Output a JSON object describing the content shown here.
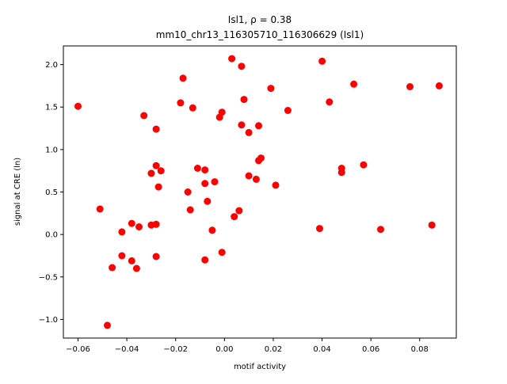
{
  "chart_data": {
    "type": "scatter",
    "title_line1": "Isl1, ρ = 0.38",
    "title_line2": "mm10_chr13_116305710_116306629 (Isl1)",
    "xlabel": "motif activity",
    "ylabel": "signal at CRE (ln)",
    "xlim": [
      -0.066,
      0.095
    ],
    "ylim": [
      -1.22,
      2.22
    ],
    "xticks": [
      -0.06,
      -0.04,
      -0.02,
      0.0,
      0.02,
      0.04,
      0.06,
      0.08
    ],
    "xtick_labels": [
      "−0.06",
      "−0.04",
      "−0.02",
      "0.00",
      "0.02",
      "0.04",
      "0.06",
      "0.08"
    ],
    "yticks": [
      -1.0,
      -0.5,
      0.0,
      0.5,
      1.0,
      1.5,
      2.0
    ],
    "ytick_labels": [
      "−1.0",
      "−0.5",
      "0.0",
      "0.5",
      "1.0",
      "1.5",
      "2.0"
    ],
    "marker_color": "#ff0000",
    "grid": false,
    "points": [
      {
        "x": -0.06,
        "y": 1.51
      },
      {
        "x": -0.051,
        "y": 0.3
      },
      {
        "x": -0.048,
        "y": -1.07
      },
      {
        "x": -0.046,
        "y": -0.39
      },
      {
        "x": -0.042,
        "y": 0.03
      },
      {
        "x": -0.042,
        "y": -0.25
      },
      {
        "x": -0.038,
        "y": 0.13
      },
      {
        "x": -0.038,
        "y": -0.31
      },
      {
        "x": -0.036,
        "y": -0.4
      },
      {
        "x": -0.035,
        "y": 0.09
      },
      {
        "x": -0.033,
        "y": 1.4
      },
      {
        "x": -0.03,
        "y": 0.72
      },
      {
        "x": -0.03,
        "y": 0.11
      },
      {
        "x": -0.028,
        "y": 1.24
      },
      {
        "x": -0.028,
        "y": 0.81
      },
      {
        "x": -0.028,
        "y": 0.12
      },
      {
        "x": -0.028,
        "y": -0.26
      },
      {
        "x": -0.027,
        "y": 0.56
      },
      {
        "x": -0.026,
        "y": 0.75
      },
      {
        "x": -0.018,
        "y": 1.55
      },
      {
        "x": -0.017,
        "y": 1.84
      },
      {
        "x": -0.015,
        "y": 0.5
      },
      {
        "x": -0.014,
        "y": 0.29
      },
      {
        "x": -0.013,
        "y": 1.49
      },
      {
        "x": -0.011,
        "y": 0.78
      },
      {
        "x": -0.008,
        "y": 0.76
      },
      {
        "x": -0.008,
        "y": 0.6
      },
      {
        "x": -0.007,
        "y": 0.39
      },
      {
        "x": -0.008,
        "y": -0.3
      },
      {
        "x": -0.005,
        "y": 0.05
      },
      {
        "x": -0.004,
        "y": 0.62
      },
      {
        "x": -0.002,
        "y": 1.38
      },
      {
        "x": -0.001,
        "y": 1.44
      },
      {
        "x": -0.001,
        "y": -0.21
      },
      {
        "x": 0.003,
        "y": 2.07
      },
      {
        "x": 0.004,
        "y": 0.21
      },
      {
        "x": 0.006,
        "y": 0.28
      },
      {
        "x": 0.007,
        "y": 1.98
      },
      {
        "x": 0.007,
        "y": 1.29
      },
      {
        "x": 0.008,
        "y": 1.59
      },
      {
        "x": 0.01,
        "y": 1.2
      },
      {
        "x": 0.01,
        "y": 0.69
      },
      {
        "x": 0.013,
        "y": 0.65
      },
      {
        "x": 0.014,
        "y": 1.28
      },
      {
        "x": 0.014,
        "y": 0.87
      },
      {
        "x": 0.015,
        "y": 0.9
      },
      {
        "x": 0.019,
        "y": 1.72
      },
      {
        "x": 0.021,
        "y": 0.58
      },
      {
        "x": 0.026,
        "y": 1.46
      },
      {
        "x": 0.039,
        "y": 0.07
      },
      {
        "x": 0.04,
        "y": 2.04
      },
      {
        "x": 0.043,
        "y": 1.56
      },
      {
        "x": 0.048,
        "y": 0.78
      },
      {
        "x": 0.048,
        "y": 0.73
      },
      {
        "x": 0.053,
        "y": 1.77
      },
      {
        "x": 0.057,
        "y": 0.82
      },
      {
        "x": 0.064,
        "y": 0.06
      },
      {
        "x": 0.076,
        "y": 1.74
      },
      {
        "x": 0.085,
        "y": 0.11
      },
      {
        "x": 0.088,
        "y": 1.75
      }
    ]
  }
}
